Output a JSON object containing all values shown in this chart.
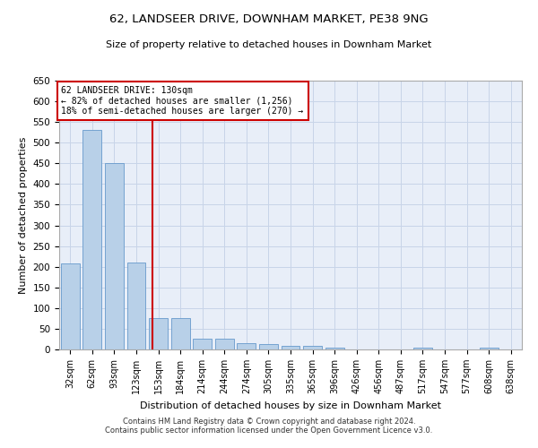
{
  "title1": "62, LANDSEER DRIVE, DOWNHAM MARKET, PE38 9NG",
  "title2": "Size of property relative to detached houses in Downham Market",
  "xlabel": "Distribution of detached houses by size in Downham Market",
  "ylabel": "Number of detached properties",
  "footnote1": "Contains HM Land Registry data © Crown copyright and database right 2024.",
  "footnote2": "Contains public sector information licensed under the Open Government Licence v3.0.",
  "annotation_line1": "62 LANDSEER DRIVE: 130sqm",
  "annotation_line2": "← 82% of detached houses are smaller (1,256)",
  "annotation_line3": "18% of semi-detached houses are larger (270) →",
  "categories": [
    "32sqm",
    "62sqm",
    "93sqm",
    "123sqm",
    "153sqm",
    "184sqm",
    "214sqm",
    "244sqm",
    "274sqm",
    "305sqm",
    "335sqm",
    "365sqm",
    "396sqm",
    "426sqm",
    "456sqm",
    "487sqm",
    "517sqm",
    "547sqm",
    "577sqm",
    "608sqm",
    "638sqm"
  ],
  "values": [
    207,
    530,
    450,
    210,
    75,
    75,
    27,
    27,
    15,
    12,
    8,
    8,
    5,
    0,
    0,
    0,
    4,
    0,
    0,
    4,
    0
  ],
  "bar_color": "#b8d0e8",
  "bar_edge_color": "#6699cc",
  "grid_color": "#c8d4e8",
  "bg_color": "#e8eef8",
  "vline_color": "#cc0000",
  "annotation_box_color": "#cc0000",
  "ylim": [
    0,
    650
  ],
  "yticks": [
    0,
    50,
    100,
    150,
    200,
    250,
    300,
    350,
    400,
    450,
    500,
    550,
    600,
    650
  ],
  "vline_position": 3.75
}
